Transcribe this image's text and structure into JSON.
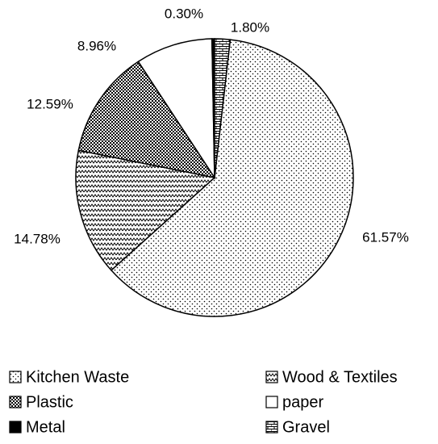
{
  "chart_data": {
    "type": "pie",
    "categories": [
      "Kitchen Waste",
      "Wood & Textiles",
      "Plastic",
      "paper",
      "Metal",
      "Gravel"
    ],
    "values": [
      61.57,
      14.78,
      12.59,
      8.96,
      0.3,
      1.8
    ],
    "value_labels": [
      "61.57%",
      "14.78%",
      "12.59%",
      "8.96%",
      "0.30%",
      "1.80%"
    ],
    "patterns": [
      "dots",
      "zigzag",
      "crosshatch",
      "white",
      "black",
      "brick"
    ]
  }
}
